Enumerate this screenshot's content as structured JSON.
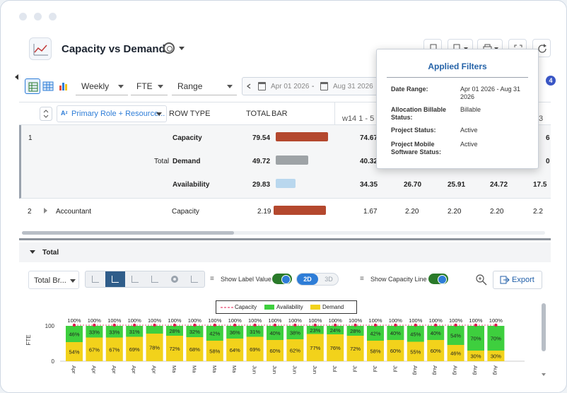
{
  "header": {
    "title": "Capacity vs Demand"
  },
  "toolbar": {
    "interval": "Weekly",
    "unit": "FTE",
    "mode": "Range",
    "date_start": "Apr 01 2026",
    "date_sep": "-",
    "date_end": "Aug 31 2026",
    "filter_badge": "4"
  },
  "grid": {
    "group_col": "Primary Role + Resource...",
    "headers": {
      "row_type": "ROW TYPE",
      "total": "TOTAL",
      "bar": "BAR",
      "week": "w14 1 - 5"
    },
    "group1": {
      "index": "1",
      "label": "Total",
      "rows": [
        {
          "type": "Capacity",
          "total": "79.54",
          "w1": "74.67",
          "w2": "",
          "w3": "",
          "w4": "",
          "w5": ""
        },
        {
          "type": "Demand",
          "total": "49.72",
          "w1": "40.32",
          "w2": "",
          "w3": "",
          "w4": "",
          "w5": ""
        },
        {
          "type": "Availability",
          "total": "29.83",
          "w1": "34.35",
          "w2": "26.70",
          "w3": "25.91",
          "w4": "24.72",
          "w5": "17.5"
        }
      ]
    },
    "group2": {
      "index": "2",
      "name": "Accountant",
      "row": {
        "type": "Capacity",
        "total": "2.19",
        "w1": "1.67",
        "w2": "2.20",
        "w3": "2.20",
        "w4": "2.20",
        "w5": "2.2"
      }
    },
    "partial_right": {
      "cap": "6",
      "dem": "0",
      "wk": "3"
    }
  },
  "total_section": {
    "label": "Total"
  },
  "chart_toolbar": {
    "measure": "Total Br...",
    "show_label": "Show Label Value",
    "mode_2d": "2D",
    "mode_3d": "3D",
    "show_capacity": "Show Capacity Line",
    "export": "Export"
  },
  "filters": {
    "title": "Applied Filters",
    "items": [
      {
        "key": "Date Range:",
        "value": "Apr 01 2026 - Aug 31 2026"
      },
      {
        "key": "Allocation Billable Status:",
        "value": "Billable"
      },
      {
        "key": "Project Status:",
        "value": "Active"
      },
      {
        "key": "Project Mobile Software Status:",
        "value": "Active"
      }
    ]
  },
  "chart_data": {
    "type": "bar",
    "stacked": true,
    "ylabel": "FTE",
    "ylim": [
      0,
      100
    ],
    "yticks": [
      "0",
      "100"
    ],
    "legend": [
      "Capacity",
      "Availability",
      "Demand"
    ],
    "colors": {
      "availability": "#3ecf3e",
      "demand": "#f2d21b",
      "capacity": "#e0194d"
    },
    "categories": [
      "Apr",
      "Apr",
      "Apr",
      "Apr",
      "Apr",
      "Ma",
      "Ma",
      "Ma",
      "Ma",
      "Jun",
      "Jun",
      "Jun",
      "Jun",
      "Jul",
      "Jul",
      "Jul",
      "Jul",
      "Aug",
      "Aug",
      "Aug",
      "Aug",
      "Aug"
    ],
    "top_labels": [
      "100%",
      "100%",
      "100%",
      "100%",
      "100%",
      "100%",
      "100%",
      "100%",
      "100%",
      "100%",
      "100%",
      "100%",
      "100%",
      "100%",
      "100%",
      "100%",
      "100%",
      "100%",
      "100%",
      "100%",
      "100%",
      "100%"
    ],
    "series": [
      {
        "name": "Availability",
        "values": [
          46,
          33,
          33,
          31,
          22,
          28,
          32,
          42,
          36,
          31,
          40,
          38,
          23,
          24,
          28,
          42,
          40,
          45,
          40,
          54,
          70,
          70
        ]
      },
      {
        "name": "Demand",
        "values": [
          54,
          67,
          67,
          69,
          78,
          72,
          68,
          58,
          64,
          69,
          60,
          62,
          77,
          76,
          72,
          58,
          60,
          55,
          60,
          46,
          30,
          30
        ]
      }
    ],
    "labels": {
      "availability": [
        "46%",
        "33%",
        "33%",
        "31%",
        "",
        "28%",
        "32%",
        "42%",
        "36%",
        "31%",
        "40%",
        "38%",
        "23%",
        "24%",
        "28%",
        "42%",
        "40%",
        "45%",
        "40%",
        "54%",
        "70%",
        "70%"
      ],
      "demand": [
        "54%",
        "67%",
        "67%",
        "69%",
        "78%",
        "72%",
        "68%",
        "58%",
        "64%",
        "69%",
        "60%",
        "62%",
        "77%",
        "76%",
        "72%",
        "58%",
        "60%",
        "55%",
        "60%",
        "46%",
        "30%",
        "30%"
      ]
    }
  }
}
